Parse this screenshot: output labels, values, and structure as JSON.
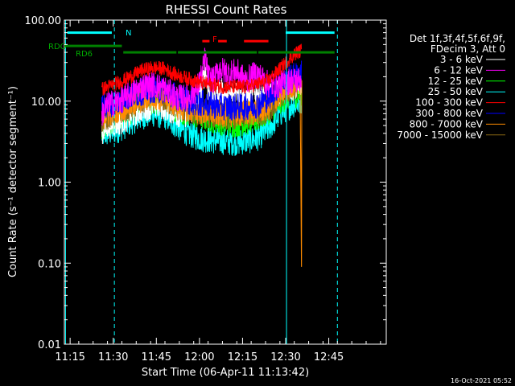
{
  "chart_data": {
    "type": "line",
    "title": "RHESSI Count Rates",
    "xlabel": "Start Time (06-Apr-11 11:13:42)",
    "ylabel": "Count Rate (s⁻¹ detector segment⁻¹)",
    "xlim": [
      673,
      785
    ],
    "ylim": [
      0.01,
      100
    ],
    "yscale": "log",
    "x_ticks": [
      {
        "value": 675,
        "label": "11:15"
      },
      {
        "value": 690,
        "label": "11:30"
      },
      {
        "value": 705,
        "label": "11:45"
      },
      {
        "value": 720,
        "label": "12:00"
      },
      {
        "value": 735,
        "label": "12:15"
      },
      {
        "value": 750,
        "label": "12:30"
      },
      {
        "value": 765,
        "label": "12:45"
      }
    ],
    "y_ticks": [
      {
        "value": 100,
        "label": "100.00"
      },
      {
        "value": 10,
        "label": "10.00"
      },
      {
        "value": 1,
        "label": "1.00"
      },
      {
        "value": 0.1,
        "label": "0.10"
      },
      {
        "value": 0.01,
        "label": "0.01"
      }
    ],
    "legend_header": [
      "Det 1f,3f,4f,5f,6f,9f,",
      "FDecim 3, Att 0"
    ],
    "series": [
      {
        "name": "3 - 6 keV",
        "color": "#ffffff",
        "x": [
          686,
          688,
          692,
          696,
          700,
          704,
          708,
          712,
          716,
          719,
          721,
          722,
          723,
          725,
          727,
          730,
          733,
          736,
          740,
          744,
          748,
          750,
          752,
          754,
          755.5
        ],
        "values": [
          4,
          5,
          5.5,
          6.5,
          8,
          9,
          8.5,
          7,
          7,
          9,
          16,
          25,
          14,
          10,
          14,
          11,
          14,
          11,
          13,
          11,
          13,
          15,
          15,
          14,
          15
        ]
      },
      {
        "name": "6 - 12 keV",
        "color": "#ff00ff",
        "x": [
          686,
          688,
          692,
          696,
          700,
          704,
          708,
          712,
          716,
          719,
          721,
          722,
          723,
          725,
          727,
          730,
          733,
          736,
          740,
          744,
          748,
          750,
          752,
          754,
          755.5
        ],
        "values": [
          7,
          9,
          10,
          12,
          15,
          16,
          14,
          11,
          11,
          14,
          22,
          35,
          20,
          18,
          25,
          22,
          23,
          18,
          22,
          16,
          16,
          17,
          18,
          18,
          19
        ]
      },
      {
        "name": "12 - 25 keV",
        "color": "#00ff00",
        "x": [
          686,
          688,
          692,
          696,
          700,
          704,
          708,
          712,
          716,
          720,
          724,
          728,
          732,
          736,
          740,
          744,
          748,
          750,
          752,
          754,
          755.5
        ],
        "values": [
          5,
          5.5,
          6.5,
          7.5,
          9,
          10,
          9.5,
          8,
          7,
          6.5,
          6,
          5.5,
          5.2,
          5.5,
          6,
          7.5,
          10,
          11,
          12,
          12.5,
          13
        ]
      },
      {
        "name": "25 - 50 keV",
        "color": "#00ffff",
        "x": [
          686,
          688,
          692,
          696,
          700,
          704,
          708,
          712,
          716,
          720,
          724,
          728,
          732,
          736,
          740,
          744,
          748,
          750,
          752,
          754,
          755.5
        ],
        "values": [
          3.8,
          4,
          4.5,
          5.5,
          6.5,
          7,
          6.5,
          5,
          4,
          3.5,
          3.3,
          3.2,
          3.1,
          3.2,
          3.5,
          4.5,
          7,
          8,
          9,
          9.5,
          10
        ]
      },
      {
        "name": "100 - 300 keV",
        "color": "#ff0000",
        "x": [
          686,
          688,
          692,
          696,
          700,
          704,
          708,
          712,
          716,
          720,
          724,
          728,
          732,
          736,
          740,
          744,
          748,
          750,
          752,
          754,
          755.5
        ],
        "values": [
          14,
          15,
          17,
          20,
          24,
          26,
          25,
          21,
          19,
          17,
          16,
          15,
          15,
          15,
          16,
          18,
          25,
          30,
          35,
          40,
          42
        ]
      },
      {
        "name": "300 - 800 keV",
        "color": "#0000ff",
        "x": [
          686,
          688,
          692,
          696,
          700,
          704,
          708,
          712,
          716,
          720,
          724,
          728,
          732,
          736,
          740,
          744,
          748,
          750,
          752,
          754,
          755.5
        ],
        "values": [
          8.5,
          9,
          10,
          11.5,
          13,
          14,
          13.5,
          11.5,
          10,
          9.5,
          9,
          8.5,
          8.5,
          8.5,
          9,
          11,
          16,
          18,
          20,
          21,
          22
        ]
      },
      {
        "name": "800 - 7000 keV",
        "color": "#ff8c00",
        "x": [
          686,
          688,
          692,
          696,
          700,
          704,
          708,
          712,
          716,
          720,
          724,
          728,
          732,
          736,
          740,
          744,
          748,
          750,
          752,
          754,
          755,
          755.5,
          755.6
        ],
        "values": [
          6.5,
          7,
          8,
          9,
          10.5,
          11.5,
          11,
          9,
          8,
          7.5,
          7.2,
          7,
          7,
          7,
          7.5,
          8.5,
          12,
          14,
          16,
          17,
          18,
          0.09,
          18
        ]
      },
      {
        "name": "7000 - 15000 keV",
        "color": "#8b6914",
        "x": [
          686,
          688,
          692,
          696,
          700,
          704,
          708,
          712,
          716,
          720,
          724,
          728,
          732,
          736,
          740,
          744,
          748,
          750,
          752,
          754,
          755.5
        ],
        "values": [
          6,
          6.5,
          7.5,
          8.5,
          10,
          11,
          10.5,
          8.5,
          7.5,
          7,
          6.8,
          6.6,
          6.6,
          6.6,
          7,
          8,
          11,
          13,
          15,
          16,
          17
        ]
      }
    ],
    "annotations": [
      {
        "text": "N",
        "color": "#00ffff"
      },
      {
        "text": "RDO",
        "color": "#00aa00"
      },
      {
        "text": "RD6",
        "color": "#00aa00"
      },
      {
        "text": "F",
        "color": "#ff0000"
      }
    ],
    "state_bars": [
      {
        "state": "N",
        "color": "#00ffff",
        "y": 70,
        "ranges": [
          [
            674,
            689.5
          ],
          [
            750,
            767
          ]
        ]
      },
      {
        "state": "RD",
        "color": "#008000",
        "y": 48,
        "ranges": [
          [
            673,
            693
          ]
        ]
      },
      {
        "state": "RD",
        "color": "#008000",
        "y": 40,
        "ranges": [
          [
            693.5,
            712
          ],
          [
            712.5,
            740
          ],
          [
            740.5,
            767
          ]
        ]
      },
      {
        "state": "F",
        "color": "#ff0000",
        "y": 55,
        "ranges": [
          [
            721,
            723.5
          ],
          [
            726.5,
            729.5
          ],
          [
            735.5,
            744
          ]
        ]
      }
    ],
    "vlines": [
      {
        "x": 673.4,
        "color": "#00ffff",
        "style": "solid"
      },
      {
        "x": 690.4,
        "color": "#00ffff",
        "style": "dashed"
      },
      {
        "x": 750.3,
        "color": "#00ffff",
        "style": "solid"
      },
      {
        "x": 768,
        "color": "#00ffff",
        "style": "dashed"
      }
    ],
    "footer": "16-Oct-2021 05:52"
  }
}
